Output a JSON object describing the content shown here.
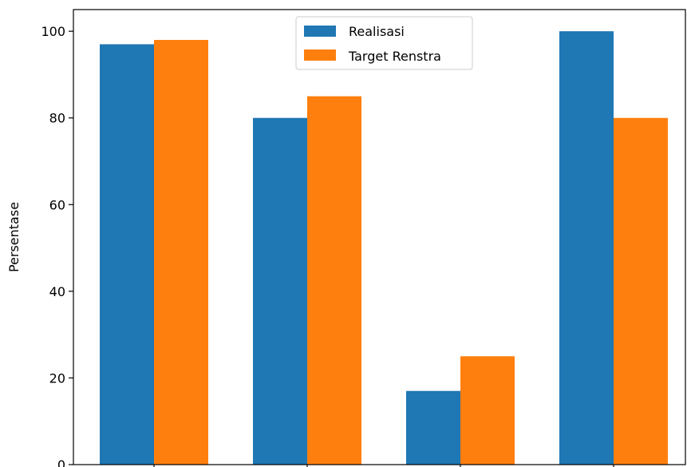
{
  "chart_data": {
    "type": "bar",
    "title": "",
    "xlabel": "",
    "ylabel": "Persentase",
    "categories": [
      "",
      "",
      "",
      ""
    ],
    "series": [
      {
        "name": "Realisasi",
        "values": [
          97,
          80,
          17,
          100
        ],
        "color": "#1f77b4"
      },
      {
        "name": "Target Renstra",
        "values": [
          98,
          85,
          25,
          80
        ],
        "color": "#ff7f0e"
      }
    ],
    "ylim": [
      0,
      105
    ],
    "yticks": [
      0,
      20,
      40,
      60,
      80,
      100
    ],
    "legend_position": "top-center",
    "grid": false
  }
}
